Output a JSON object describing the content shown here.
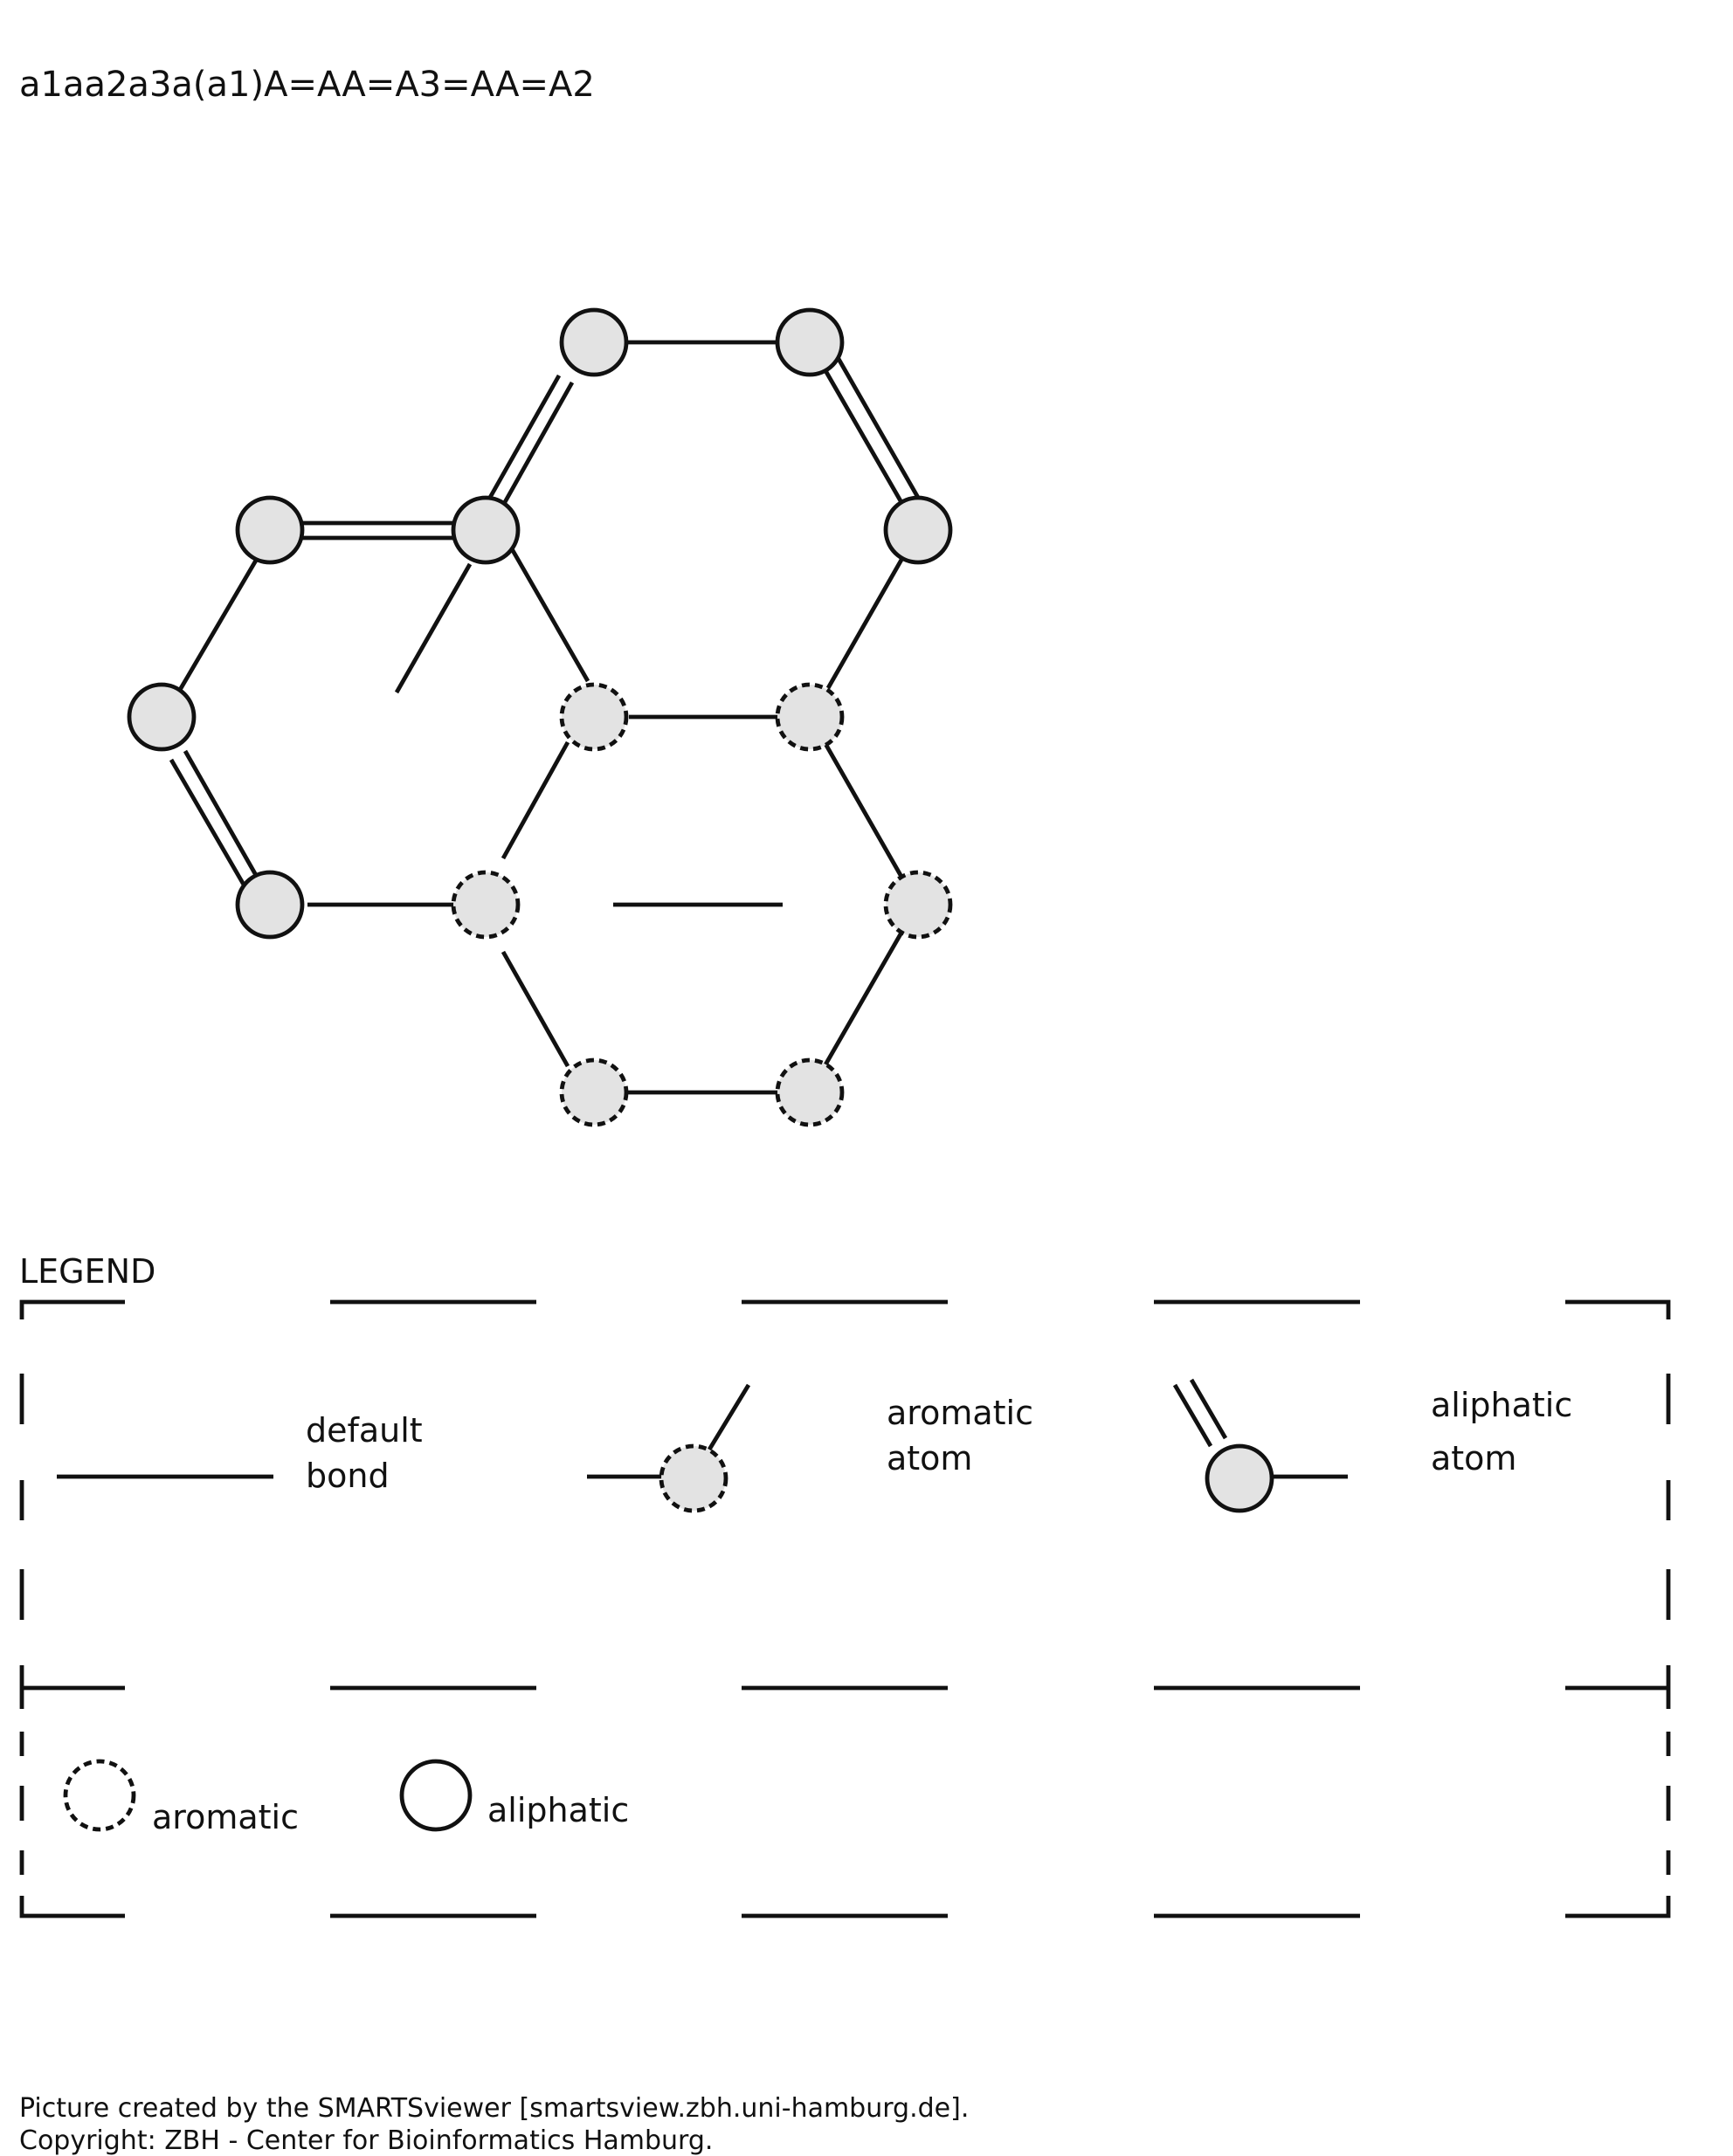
{
  "smarts": "a1aa2a3a(a1)A=AA=A3=AA=A2",
  "legend": {
    "title": "LEGEND",
    "bond_line1": "default",
    "bond_line2": "bond",
    "aromatic_atom_line1": "aromatic",
    "aromatic_atom_line2": "atom",
    "aliphatic_atom_line1": "aliphatic",
    "aliphatic_atom_line2": "atom",
    "aromatic_label": "aromatic",
    "aliphatic_label": "aliphatic"
  },
  "footer": {
    "line1": "Picture created by the SMARTSviewer [smartsview.zbh.uni-hamburg.de].",
    "line2": "Copyright: ZBH - Center for Bioinformatics Hamburg."
  },
  "colors": {
    "atom_fill": "#e3e3e3",
    "stroke": "#111111",
    "background": "#ffffff"
  }
}
